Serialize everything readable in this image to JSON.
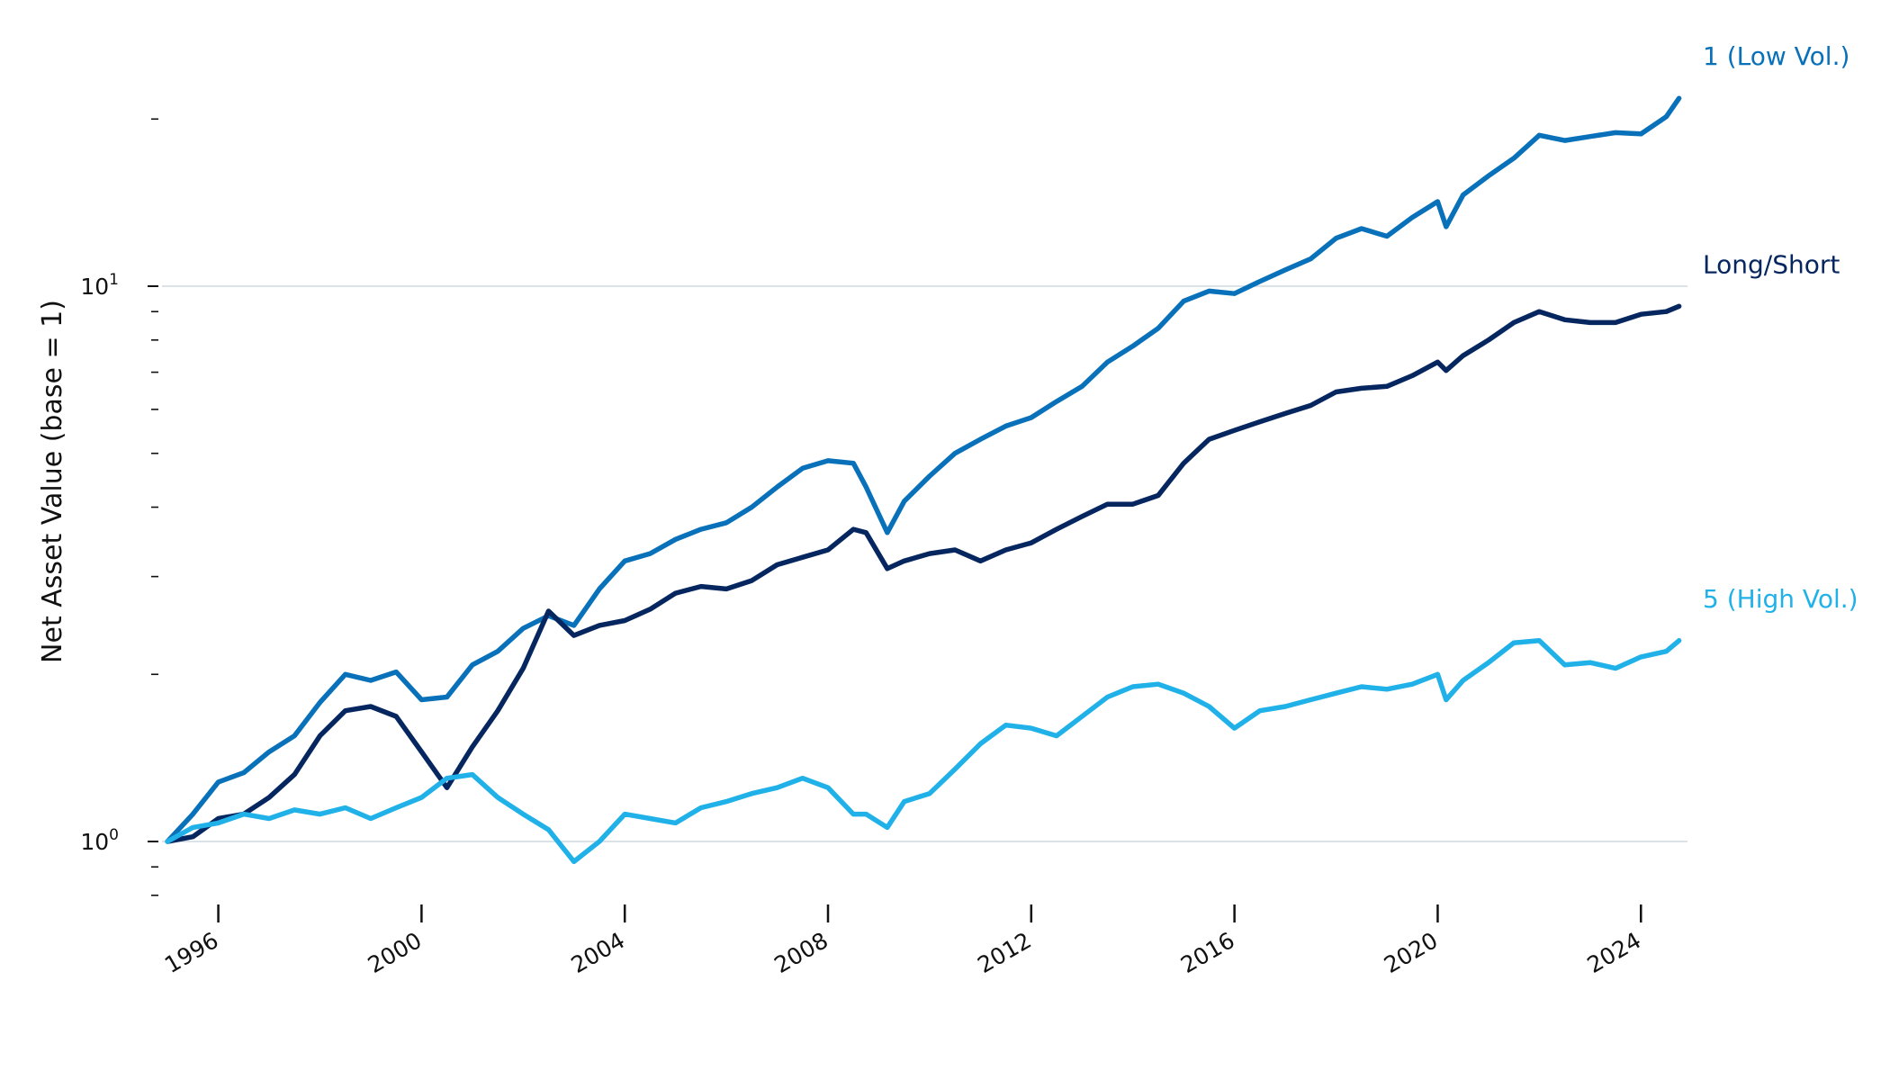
{
  "chart_data": {
    "type": "line",
    "ylabel": "Net Asset Value (base = 1)",
    "yscale": "log",
    "ylim": [
      0.78,
      27
    ],
    "xlim": [
      "1994-10-01",
      "2024-12-01"
    ],
    "grid": "horizontal at decades",
    "x_ticks": [
      "1996",
      "2000",
      "2004",
      "2008",
      "2012",
      "2016",
      "2020",
      "2024"
    ],
    "y_major_ticks": [
      {
        "base": "10",
        "exp": "0",
        "value": 1
      },
      {
        "base": "10",
        "exp": "1",
        "value": 10
      }
    ],
    "legend_placement": "end labels at right",
    "series": [
      {
        "name": "1 (Low Vol.)",
        "color": "#0871b9",
        "x": [
          "1995-01",
          "1995-07",
          "1996-01",
          "1996-07",
          "1997-01",
          "1997-07",
          "1998-01",
          "1998-07",
          "1999-01",
          "1999-07",
          "2000-01",
          "2000-07",
          "2001-01",
          "2001-07",
          "2002-01",
          "2002-07",
          "2003-01",
          "2003-07",
          "2004-01",
          "2004-07",
          "2005-01",
          "2005-07",
          "2006-01",
          "2006-07",
          "2007-01",
          "2007-07",
          "2008-01",
          "2008-07",
          "2008-10",
          "2009-03",
          "2009-07",
          "2010-01",
          "2010-07",
          "2011-01",
          "2011-07",
          "2012-01",
          "2012-07",
          "2013-01",
          "2013-07",
          "2014-01",
          "2014-07",
          "2015-01",
          "2015-07",
          "2016-01",
          "2016-07",
          "2017-01",
          "2017-07",
          "2018-01",
          "2018-07",
          "2019-01",
          "2019-07",
          "2020-01",
          "2020-03",
          "2020-07",
          "2021-01",
          "2021-07",
          "2022-01",
          "2022-07",
          "2023-01",
          "2023-07",
          "2024-01",
          "2024-07",
          "2024-10"
        ],
        "values": [
          1.0,
          1.12,
          1.28,
          1.33,
          1.45,
          1.55,
          1.78,
          2.0,
          1.95,
          2.02,
          1.8,
          1.82,
          2.08,
          2.2,
          2.42,
          2.55,
          2.45,
          2.85,
          3.2,
          3.3,
          3.5,
          3.65,
          3.75,
          4.0,
          4.35,
          4.7,
          4.85,
          4.8,
          4.35,
          3.6,
          4.1,
          4.55,
          5.0,
          5.3,
          5.6,
          5.8,
          6.2,
          6.6,
          7.3,
          7.8,
          8.4,
          9.4,
          9.8,
          9.7,
          10.2,
          10.7,
          11.2,
          12.2,
          12.7,
          12.3,
          13.3,
          14.2,
          12.8,
          14.6,
          15.8,
          17.0,
          18.7,
          18.3,
          18.6,
          18.9,
          18.8,
          20.2,
          21.8
        ]
      },
      {
        "name": "Long/Short",
        "color": "#062660",
        "x": [
          "1995-01",
          "1995-07",
          "1996-01",
          "1996-07",
          "1997-01",
          "1997-07",
          "1998-01",
          "1998-07",
          "1999-01",
          "1999-07",
          "2000-01",
          "2000-07",
          "2001-01",
          "2001-07",
          "2002-01",
          "2002-07",
          "2003-01",
          "2003-07",
          "2004-01",
          "2004-07",
          "2005-01",
          "2005-07",
          "2006-01",
          "2006-07",
          "2007-01",
          "2007-07",
          "2008-01",
          "2008-07",
          "2008-10",
          "2009-03",
          "2009-07",
          "2010-01",
          "2010-07",
          "2011-01",
          "2011-07",
          "2012-01",
          "2012-07",
          "2013-01",
          "2013-07",
          "2014-01",
          "2014-07",
          "2015-01",
          "2015-07",
          "2016-01",
          "2016-07",
          "2017-01",
          "2017-07",
          "2018-01",
          "2018-07",
          "2019-01",
          "2019-07",
          "2020-01",
          "2020-03",
          "2020-07",
          "2021-01",
          "2021-07",
          "2022-01",
          "2022-07",
          "2023-01",
          "2023-07",
          "2024-01",
          "2024-07",
          "2024-10"
        ],
        "values": [
          1.0,
          1.02,
          1.1,
          1.12,
          1.2,
          1.32,
          1.55,
          1.72,
          1.75,
          1.68,
          1.45,
          1.25,
          1.48,
          1.72,
          2.05,
          2.6,
          2.35,
          2.45,
          2.5,
          2.62,
          2.8,
          2.88,
          2.85,
          2.95,
          3.15,
          3.25,
          3.35,
          3.65,
          3.6,
          3.1,
          3.2,
          3.3,
          3.35,
          3.2,
          3.35,
          3.45,
          3.65,
          3.85,
          4.05,
          4.05,
          4.2,
          4.8,
          5.3,
          5.5,
          5.7,
          5.9,
          6.1,
          6.45,
          6.55,
          6.6,
          6.9,
          7.3,
          7.05,
          7.5,
          8.0,
          8.6,
          9.0,
          8.7,
          8.6,
          8.6,
          8.9,
          9.0,
          9.2
        ]
      },
      {
        "name": "5 (High Vol.)",
        "color": "#21b1e9",
        "x": [
          "1995-01",
          "1995-07",
          "1996-01",
          "1996-07",
          "1997-01",
          "1997-07",
          "1998-01",
          "1998-07",
          "1999-01",
          "1999-07",
          "2000-01",
          "2000-07",
          "2001-01",
          "2001-07",
          "2002-01",
          "2002-07",
          "2003-01",
          "2003-07",
          "2004-01",
          "2004-07",
          "2005-01",
          "2005-07",
          "2006-01",
          "2006-07",
          "2007-01",
          "2007-07",
          "2008-01",
          "2008-07",
          "2008-10",
          "2009-03",
          "2009-07",
          "2010-01",
          "2010-07",
          "2011-01",
          "2011-07",
          "2012-01",
          "2012-07",
          "2013-01",
          "2013-07",
          "2014-01",
          "2014-07",
          "2015-01",
          "2015-07",
          "2016-01",
          "2016-07",
          "2017-01",
          "2017-07",
          "2018-01",
          "2018-07",
          "2019-01",
          "2019-07",
          "2020-01",
          "2020-03",
          "2020-07",
          "2021-01",
          "2021-07",
          "2022-01",
          "2022-07",
          "2023-01",
          "2023-07",
          "2024-01",
          "2024-07",
          "2024-10"
        ],
        "values": [
          1.0,
          1.06,
          1.08,
          1.12,
          1.1,
          1.14,
          1.12,
          1.15,
          1.1,
          1.15,
          1.2,
          1.3,
          1.32,
          1.2,
          1.12,
          1.05,
          0.92,
          1.0,
          1.12,
          1.1,
          1.08,
          1.15,
          1.18,
          1.22,
          1.25,
          1.3,
          1.25,
          1.12,
          1.12,
          1.06,
          1.18,
          1.22,
          1.35,
          1.5,
          1.62,
          1.6,
          1.55,
          1.68,
          1.82,
          1.9,
          1.92,
          1.85,
          1.75,
          1.6,
          1.72,
          1.75,
          1.8,
          1.85,
          1.9,
          1.88,
          1.92,
          2.0,
          1.8,
          1.95,
          2.1,
          2.28,
          2.3,
          2.08,
          2.1,
          2.05,
          2.15,
          2.2,
          2.3
        ]
      }
    ]
  }
}
